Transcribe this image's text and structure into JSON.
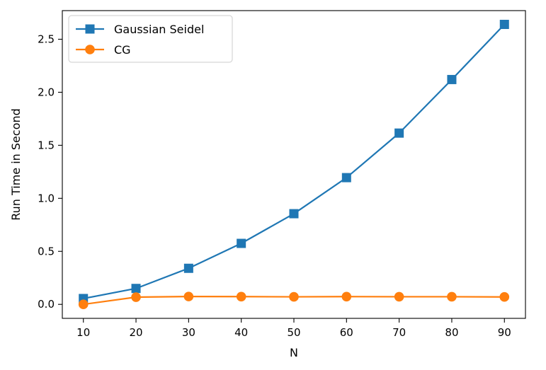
{
  "chart_data": {
    "type": "line",
    "title": "",
    "xlabel": "N",
    "ylabel": "Run Time in Second",
    "x": [
      10,
      20,
      30,
      40,
      50,
      60,
      70,
      80,
      90
    ],
    "xlim": [
      6,
      94
    ],
    "ylim": [
      -0.132,
      2.77
    ],
    "xticks": [
      10,
      20,
      30,
      40,
      50,
      60,
      70,
      80,
      90
    ],
    "yticks": [
      0.0,
      0.5,
      1.0,
      1.5,
      2.0,
      2.5
    ],
    "ytick_labels": [
      "0.0",
      "0.5",
      "1.0",
      "1.5",
      "2.0",
      "2.5"
    ],
    "grid": false,
    "legend_position": "upper-left",
    "series": [
      {
        "name": "Gaussian Seidel",
        "color": "#1f77b4",
        "marker": "square",
        "values": [
          0.055,
          0.15,
          0.34,
          0.575,
          0.855,
          1.195,
          1.615,
          2.12,
          2.64
        ]
      },
      {
        "name": "CG",
        "color": "#ff7f0e",
        "marker": "circle",
        "values": [
          0.0,
          0.068,
          0.074,
          0.073,
          0.071,
          0.073,
          0.072,
          0.072,
          0.07
        ]
      }
    ]
  }
}
